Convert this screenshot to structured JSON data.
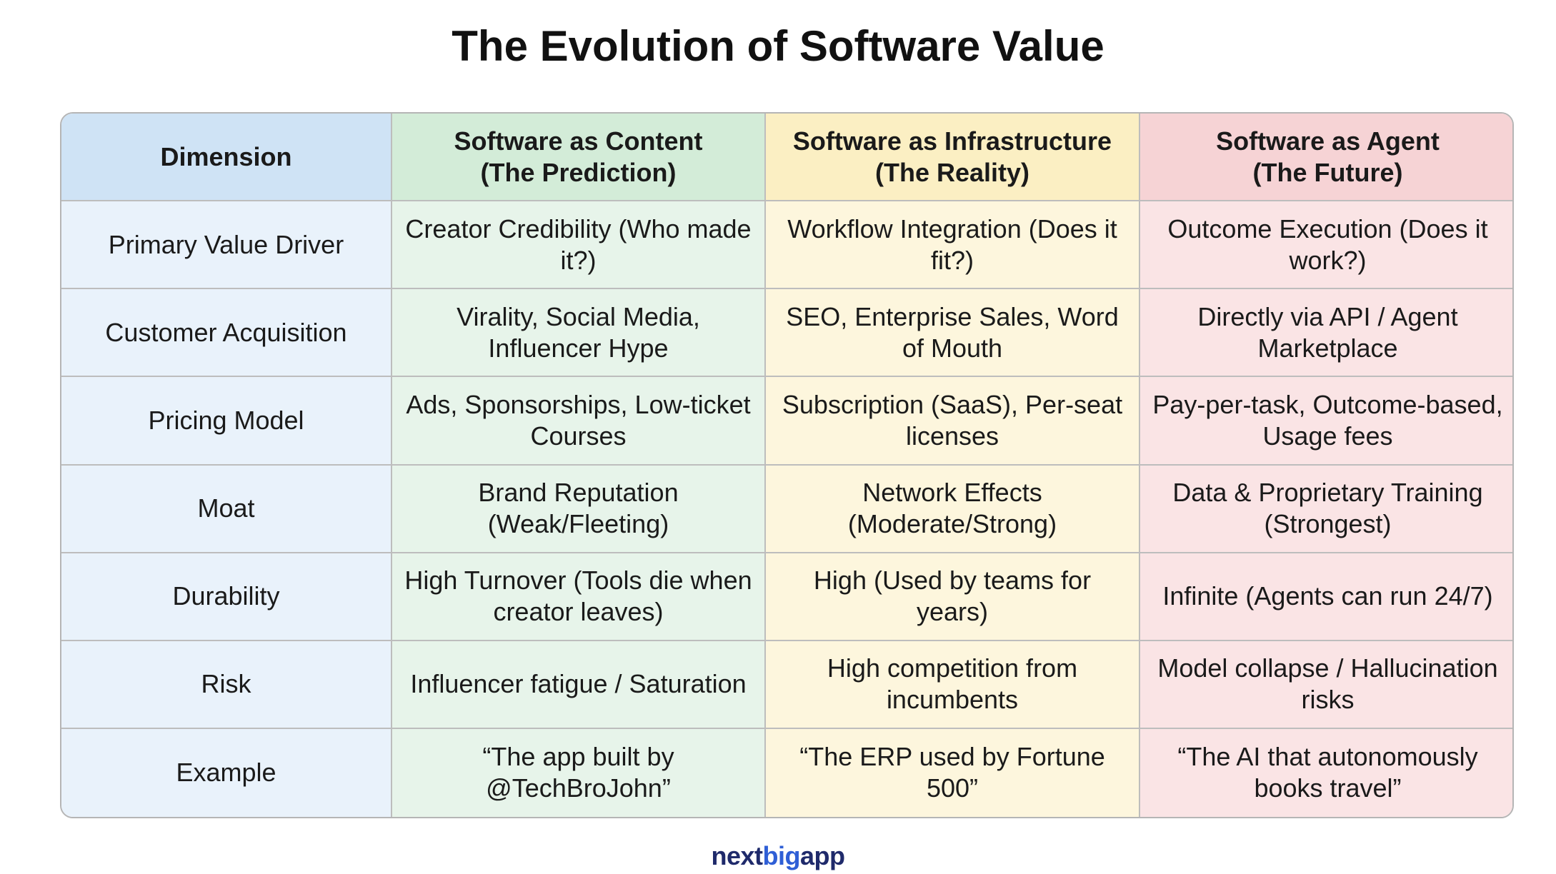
{
  "header": {
    "title": "The Evolution of Software Value"
  },
  "table": {
    "columns": [
      {
        "title": "Dimension"
      },
      {
        "title": "Software as Content",
        "subtitle": "(The Prediction)"
      },
      {
        "title": "Software as Infrastructure",
        "subtitle": "(The Reality)"
      },
      {
        "title": "Software as Agent",
        "subtitle": "(The Future)"
      }
    ],
    "rows": [
      [
        "Primary Value Driver",
        "Creator Credibility (Who made it?)",
        "Workflow Integration (Does it fit?)",
        "Outcome Execution (Does it work?)"
      ],
      [
        "Customer Acquisition",
        "Virality, Social Media, Influencer Hype",
        "SEO, Enterprise Sales, Word of Mouth",
        "Directly via API / Agent Marketplace"
      ],
      [
        "Pricing Model",
        "Ads, Sponsorships, Low-ticket Courses",
        "Subscription (SaaS), Per-seat licenses",
        "Pay-per-task, Outcome-based, Usage fees"
      ],
      [
        "Moat",
        "Brand Reputation (Weak/Fleeting)",
        "Network Effects (Moderate/Strong)",
        "Data & Proprietary Training (Strongest)"
      ],
      [
        "Durability",
        "High Turnover (Tools die when creator leaves)",
        "High (Used by teams for years)",
        "Infinite (Agents can run 24/7)"
      ],
      [
        "Risk",
        "Influencer fatigue / Saturation",
        "High competition from incumbents",
        "Model collapse / Hallucination risks"
      ],
      [
        "Example",
        "“The app built by @TechBroJohn”",
        "“The ERP used by Fortune 500”",
        "“The AI that autonomously books travel”"
      ]
    ]
  },
  "footer": {
    "logo": [
      "next",
      "big",
      "app"
    ]
  }
}
